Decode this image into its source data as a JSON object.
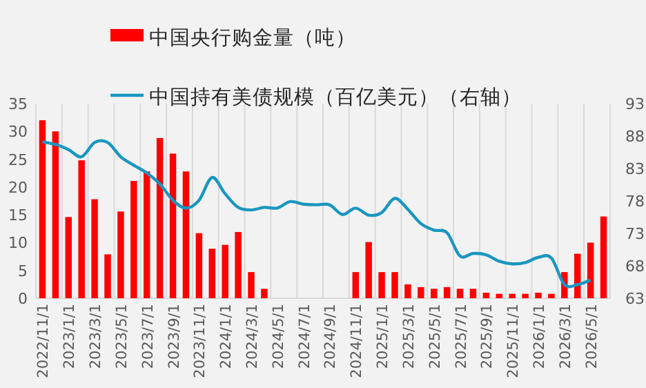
{
  "chart_data": {
    "type": "bar",
    "categories": [
      "2022/11/1",
      null,
      "2023/1/1",
      null,
      "2023/3/1",
      null,
      "2023/5/1",
      null,
      "2023/7/1",
      null,
      "2023/9/1",
      null,
      "2023/11/1",
      null,
      "2024/1/1",
      null,
      "2024/3/1",
      null,
      "2024/5/1",
      null,
      "2024/7/1",
      null,
      "2024/9/1",
      null,
      "2024/11/1",
      null,
      "2025/1/1",
      null,
      "2025/3/1",
      null,
      "2025/5/1",
      null,
      "2025/7/1",
      null,
      "2025/9/1",
      null,
      "2025/11/1",
      null,
      "2026/1/1",
      null,
      "2026/3/1",
      null,
      "2026/5/1",
      null
    ],
    "series": [
      {
        "name": "中国央行购金量（吨）",
        "color": "#ff0000",
        "values": [
          32,
          30,
          14.6,
          24.8,
          17.8,
          7.9,
          15.6,
          21.1,
          22.8,
          28.8,
          26,
          22.8,
          11.7,
          8.9,
          9.6,
          11.9,
          4.7,
          1.7,
          0,
          0,
          0,
          0,
          0,
          0,
          4.7,
          10.1,
          4.7,
          4.7,
          2.5,
          2.0,
          1.7,
          2.0,
          1.7,
          1.7,
          1.0,
          0.8,
          0.8,
          0.8,
          1.0,
          0.8,
          4.7,
          8.0,
          10,
          14.7
        ]
      },
      {
        "name": "中国持有美债规模（百亿美元）（右轴）",
        "type": "line",
        "axis": "y2",
        "color": "#1a96c0",
        "values": [
          87.1,
          86.7,
          85.9,
          84.8,
          87.0,
          87.0,
          84.8,
          83.5,
          82.3,
          80.6,
          78.1,
          76.9,
          78.1,
          81.6,
          79.1,
          77.0,
          76.6,
          77.0,
          76.9,
          77.9,
          77.5,
          77.4,
          77.4,
          75.9,
          76.9,
          75.8,
          76.2,
          78.4,
          76.7,
          74.5,
          73.5,
          73.1,
          69.5,
          69.9,
          69.7,
          68.7,
          68.3,
          68.5,
          69.3,
          69.2,
          65.1,
          65.1,
          65.8,
          null
        ]
      }
    ],
    "ylim": [
      0,
      35
    ],
    "yticks": [
      0,
      5,
      10,
      15,
      20,
      25,
      30,
      35
    ],
    "y2lim": [
      63,
      93
    ],
    "y2ticks": [
      63,
      68,
      73,
      78,
      83,
      88,
      93
    ],
    "grid": "x",
    "legend": "top",
    "marker": "none",
    "line_style": "solid"
  }
}
